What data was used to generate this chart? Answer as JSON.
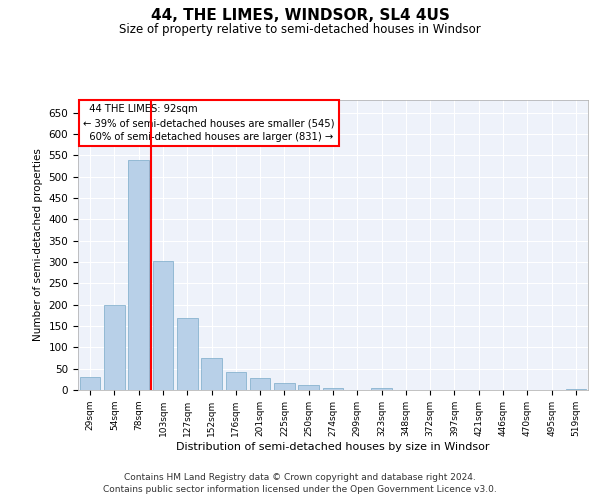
{
  "title": "44, THE LIMES, WINDSOR, SL4 4US",
  "subtitle": "Size of property relative to semi-detached houses in Windsor",
  "xlabel": "Distribution of semi-detached houses by size in Windsor",
  "ylabel": "Number of semi-detached properties",
  "bar_color": "#b8d0e8",
  "bar_edge_color": "#7aaac8",
  "background_color": "#eef2fa",
  "grid_color": "#ffffff",
  "categories": [
    "29sqm",
    "54sqm",
    "78sqm",
    "103sqm",
    "127sqm",
    "152sqm",
    "176sqm",
    "201sqm",
    "225sqm",
    "250sqm",
    "274sqm",
    "299sqm",
    "323sqm",
    "348sqm",
    "372sqm",
    "397sqm",
    "421sqm",
    "446sqm",
    "470sqm",
    "495sqm",
    "519sqm"
  ],
  "values": [
    30,
    200,
    540,
    303,
    168,
    75,
    42,
    27,
    17,
    11,
    4,
    0,
    5,
    0,
    0,
    0,
    0,
    0,
    0,
    0,
    3
  ],
  "ylim": [
    0,
    680
  ],
  "yticks": [
    0,
    50,
    100,
    150,
    200,
    250,
    300,
    350,
    400,
    450,
    500,
    550,
    600,
    650
  ],
  "property_label": "44 THE LIMES: 92sqm",
  "pct_smaller": 39,
  "pct_larger": 60,
  "n_smaller": 545,
  "n_larger": 831,
  "vline_x_index": 2.5,
  "footer_line1": "Contains HM Land Registry data © Crown copyright and database right 2024.",
  "footer_line2": "Contains public sector information licensed under the Open Government Licence v3.0."
}
